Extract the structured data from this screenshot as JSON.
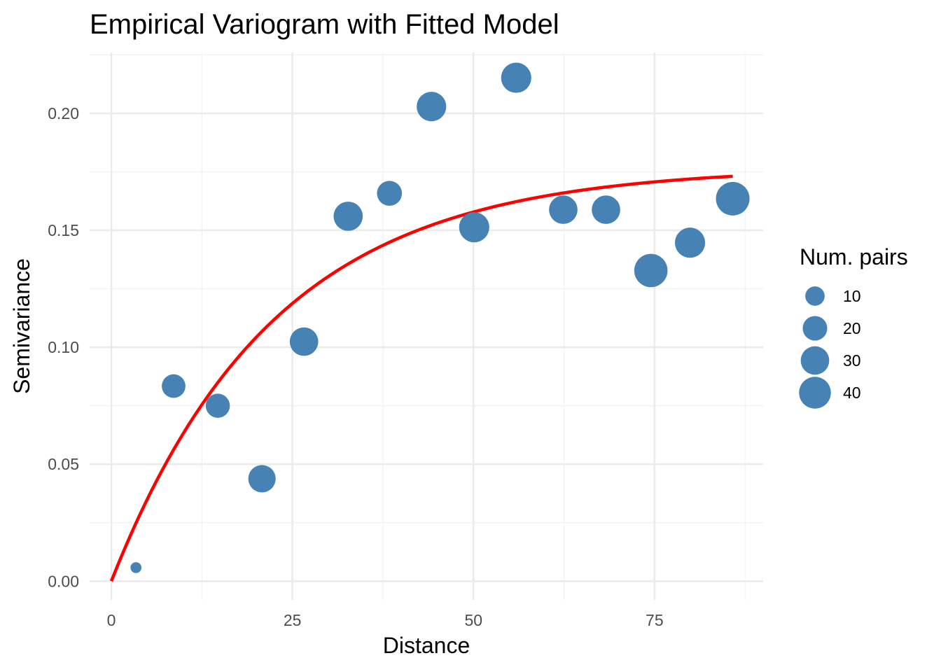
{
  "chart_data": {
    "type": "scatter",
    "title": "Empirical Variogram with Fitted Model",
    "xlabel": "Distance",
    "ylabel": "Semivariance",
    "xlim": [
      -3,
      90
    ],
    "ylim": [
      -0.008,
      0.226
    ],
    "x_ticks": [
      0,
      25,
      50,
      75
    ],
    "x_tick_labels": [
      "0",
      "25",
      "50",
      "75"
    ],
    "y_ticks": [
      0.0,
      0.05,
      0.1,
      0.15,
      0.2
    ],
    "y_tick_labels": [
      "0.00",
      "0.05",
      "0.10",
      "0.15",
      "0.20"
    ],
    "grid": true,
    "point_color": "#4682b4",
    "line_color": "#ff0000",
    "points": [
      {
        "x": 3.4,
        "y": 0.0058,
        "np": 1
      },
      {
        "x": 8.6,
        "y": 0.0834,
        "np": 18
      },
      {
        "x": 14.7,
        "y": 0.075,
        "np": 19
      },
      {
        "x": 20.8,
        "y": 0.0438,
        "np": 27
      },
      {
        "x": 26.6,
        "y": 0.1024,
        "np": 30
      },
      {
        "x": 32.7,
        "y": 0.156,
        "np": 32
      },
      {
        "x": 38.4,
        "y": 0.1658,
        "np": 21
      },
      {
        "x": 44.2,
        "y": 0.2029,
        "np": 33
      },
      {
        "x": 50.1,
        "y": 0.1513,
        "np": 35
      },
      {
        "x": 55.9,
        "y": 0.2152,
        "np": 35
      },
      {
        "x": 62.4,
        "y": 0.1588,
        "np": 30
      },
      {
        "x": 68.3,
        "y": 0.1588,
        "np": 30
      },
      {
        "x": 74.5,
        "y": 0.1328,
        "np": 45
      },
      {
        "x": 79.9,
        "y": 0.1447,
        "np": 35
      },
      {
        "x": 85.8,
        "y": 0.1635,
        "np": 46
      }
    ],
    "fitted_model": {
      "type": "exponential",
      "sill": 0.177,
      "range": 22.5,
      "nugget": 0,
      "x_start": 0,
      "x_end": 85.8
    },
    "legend": {
      "title": "Num. pairs",
      "position": "right",
      "entries": [
        {
          "label": "10",
          "np": 10
        },
        {
          "label": "20",
          "np": 20
        },
        {
          "label": "30",
          "np": 30
        },
        {
          "label": "40",
          "np": 40
        }
      ]
    }
  }
}
